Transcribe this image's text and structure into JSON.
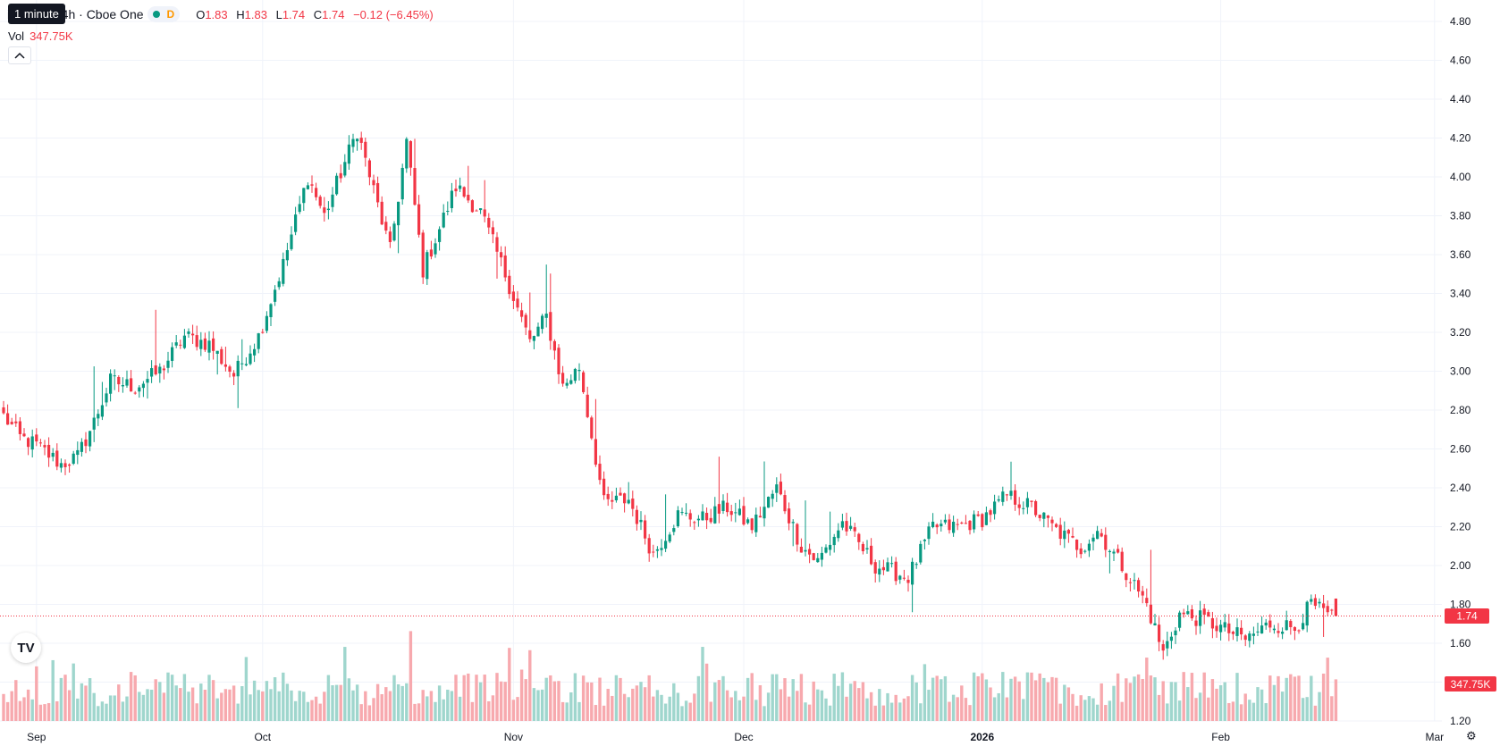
{
  "legend": {
    "symbol": "ital, Inc. · 4h · Cboe One",
    "market_badge": "D",
    "open_label": "O",
    "open": "1.83",
    "high_label": "H",
    "high": "1.83",
    "low_label": "L",
    "low": "1.74",
    "close_label": "C",
    "close": "1.74",
    "change": "−0.12 (−6.45%)",
    "vol_label": "Vol",
    "vol_value": "347.75K",
    "tooltip": "1 minute",
    "logo": "TV"
  },
  "price_scale": {
    "last_price_label": "1.74",
    "last_volume_label": "347.75K"
  },
  "colors": {
    "up": "#089981",
    "down": "#f23645",
    "up_volume": "#9fd6cd",
    "down_volume": "#f7a9ae",
    "grid": "#f0f3fa"
  },
  "icons": {
    "collapse": "chevron-up-icon",
    "settings": "gear-icon",
    "logo": "tradingview-logo-icon"
  },
  "chart_data": {
    "type": "candlestick",
    "interval": "4h",
    "yticks": [
      "1.20",
      "1.40",
      "1.60",
      "1.80",
      "2.00",
      "2.20",
      "2.40",
      "2.60",
      "2.80",
      "3.00",
      "3.20",
      "3.40",
      "3.60",
      "3.80",
      "4.00",
      "4.20",
      "4.40",
      "4.60",
      "4.80"
    ],
    "ylim": [
      1.2,
      4.8
    ],
    "xticks": [
      {
        "label": "Sep",
        "index": 8
      },
      {
        "label": "Oct",
        "index": 63
      },
      {
        "label": "Nov",
        "index": 124
      },
      {
        "label": "Dec",
        "index": 180
      },
      {
        "label": "2026",
        "index": 238,
        "bold": true
      },
      {
        "label": "Feb",
        "index": 296
      },
      {
        "label": "Mar",
        "index": 348
      }
    ],
    "pivots": [
      [
        2.77,
        0
      ],
      [
        2.66,
        4
      ],
      [
        2.62,
        8
      ],
      [
        2.52,
        14
      ],
      [
        2.56,
        18
      ],
      [
        2.74,
        22
      ],
      [
        2.95,
        26
      ],
      [
        2.92,
        32
      ],
      [
        3.0,
        38
      ],
      [
        3.18,
        44
      ],
      [
        3.14,
        50
      ],
      [
        2.98,
        56
      ],
      [
        3.18,
        62
      ],
      [
        3.55,
        68
      ],
      [
        4.0,
        74
      ],
      [
        3.8,
        78
      ],
      [
        4.24,
        86
      ],
      [
        3.62,
        94
      ],
      [
        4.18,
        98
      ],
      [
        3.52,
        102
      ],
      [
        3.95,
        110
      ],
      [
        3.82,
        116
      ],
      [
        3.5,
        122
      ],
      [
        3.15,
        128
      ],
      [
        3.28,
        132
      ],
      [
        2.92,
        136
      ],
      [
        3.02,
        140
      ],
      [
        2.32,
        146
      ],
      [
        2.34,
        152
      ],
      [
        2.06,
        158
      ],
      [
        2.26,
        164
      ],
      [
        2.24,
        170
      ],
      [
        2.3,
        176
      ],
      [
        2.2,
        182
      ],
      [
        2.4,
        188
      ],
      [
        2.1,
        194
      ],
      [
        2.02,
        198
      ],
      [
        2.22,
        204
      ],
      [
        2.0,
        212
      ],
      [
        1.94,
        220
      ],
      [
        2.2,
        226
      ],
      [
        2.2,
        232
      ],
      [
        2.24,
        238
      ],
      [
        2.36,
        244
      ],
      [
        2.3,
        250
      ],
      [
        2.18,
        256
      ],
      [
        2.09,
        262
      ],
      [
        2.18,
        266
      ],
      [
        2.0,
        272
      ],
      [
        1.8,
        278
      ],
      [
        1.55,
        282
      ],
      [
        1.75,
        286
      ],
      [
        1.72,
        292
      ],
      [
        1.68,
        296
      ],
      [
        1.62,
        302
      ],
      [
        1.7,
        308
      ],
      [
        1.68,
        314
      ],
      [
        1.8,
        318
      ],
      [
        1.74,
        322
      ],
      [
        1.74,
        324
      ]
    ],
    "candle_count": 325,
    "last_bar": {
      "open": 1.83,
      "high": 1.83,
      "low": 1.74,
      "close": 1.74,
      "volume": 347750
    }
  }
}
